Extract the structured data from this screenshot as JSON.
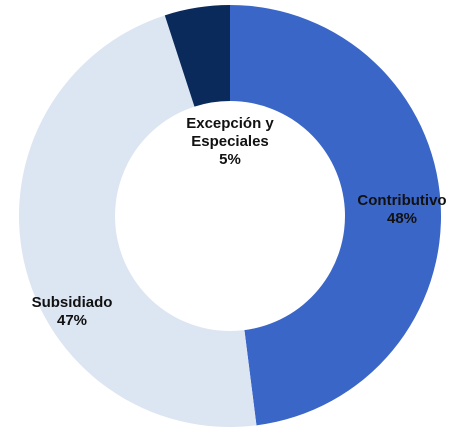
{
  "chart_data": {
    "type": "donut",
    "categories": [
      "Contributivo",
      "Subsidiado",
      "Excepción y Especiales"
    ],
    "values": [
      48,
      47,
      5
    ],
    "value_labels": [
      "48%",
      "47%",
      "5%"
    ],
    "colors": [
      "#3a66c8",
      "#dce5f2",
      "#0b2a5c"
    ]
  }
}
